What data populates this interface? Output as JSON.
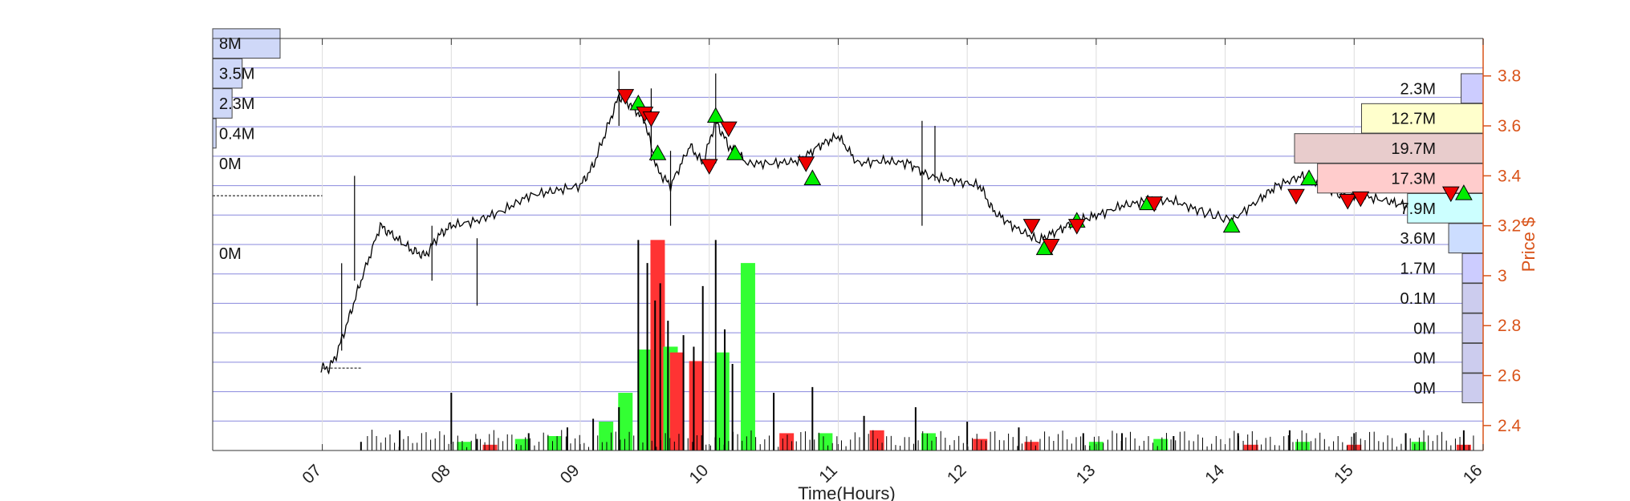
{
  "chart_data": {
    "type": "candlestick-volume-profile",
    "xlabel": "Time(Hours)",
    "ylabel": "Price $",
    "x_ticks": [
      "07",
      "08",
      "09",
      "10",
      "11",
      "12",
      "13",
      "14",
      "15",
      "16"
    ],
    "x_range": [
      6.15,
      16.0
    ],
    "price_ticks": [
      "2.4",
      "2.6",
      "2.8",
      "3",
      "3.2",
      "3.4",
      "3.6",
      "3.8"
    ],
    "price_range": [
      2.3,
      3.95
    ],
    "grid": true,
    "price_path": [
      [
        6.99,
        2.63
      ],
      [
        7.05,
        2.63
      ],
      [
        7.1,
        2.67
      ],
      [
        7.2,
        2.82
      ],
      [
        7.3,
        2.98
      ],
      [
        7.45,
        3.2
      ],
      [
        7.55,
        3.16
      ],
      [
        7.7,
        3.1
      ],
      [
        7.8,
        3.08
      ],
      [
        7.9,
        3.16
      ],
      [
        8.0,
        3.2
      ],
      [
        8.2,
        3.22
      ],
      [
        8.4,
        3.26
      ],
      [
        8.6,
        3.32
      ],
      [
        8.8,
        3.34
      ],
      [
        9.0,
        3.36
      ],
      [
        9.1,
        3.44
      ],
      [
        9.2,
        3.58
      ],
      [
        9.3,
        3.72
      ],
      [
        9.4,
        3.68
      ],
      [
        9.5,
        3.62
      ],
      [
        9.6,
        3.42
      ],
      [
        9.7,
        3.36
      ],
      [
        9.85,
        3.52
      ],
      [
        9.95,
        3.45
      ],
      [
        10.05,
        3.62
      ],
      [
        10.15,
        3.52
      ],
      [
        10.3,
        3.45
      ],
      [
        10.5,
        3.45
      ],
      [
        10.7,
        3.46
      ],
      [
        10.85,
        3.52
      ],
      [
        11.0,
        3.56
      ],
      [
        11.15,
        3.45
      ],
      [
        11.35,
        3.46
      ],
      [
        11.55,
        3.45
      ],
      [
        11.7,
        3.4
      ],
      [
        11.9,
        3.38
      ],
      [
        12.1,
        3.36
      ],
      [
        12.2,
        3.26
      ],
      [
        12.35,
        3.2
      ],
      [
        12.55,
        3.14
      ],
      [
        12.7,
        3.18
      ],
      [
        12.85,
        3.22
      ],
      [
        13.0,
        3.24
      ],
      [
        13.2,
        3.28
      ],
      [
        13.4,
        3.3
      ],
      [
        13.6,
        3.3
      ],
      [
        13.8,
        3.26
      ],
      [
        14.05,
        3.22
      ],
      [
        14.25,
        3.3
      ],
      [
        14.4,
        3.36
      ],
      [
        14.6,
        3.4
      ],
      [
        14.75,
        3.36
      ],
      [
        14.9,
        3.32
      ],
      [
        15.05,
        3.32
      ],
      [
        15.25,
        3.3
      ],
      [
        15.4,
        3.28
      ],
      [
        15.6,
        3.32
      ],
      [
        15.8,
        3.36
      ],
      [
        15.9,
        3.4
      ],
      [
        15.98,
        3.36
      ]
    ],
    "spikes": [
      [
        7.15,
        2.7,
        3.05
      ],
      [
        7.25,
        2.98,
        3.4
      ],
      [
        7.85,
        2.98,
        3.2
      ],
      [
        8.2,
        2.88,
        3.15
      ],
      [
        9.3,
        3.6,
        3.82
      ],
      [
        9.55,
        3.46,
        3.75
      ],
      [
        9.7,
        3.2,
        3.5
      ],
      [
        10.05,
        3.45,
        3.81
      ],
      [
        11.65,
        3.2,
        3.62
      ],
      [
        11.75,
        3.38,
        3.6
      ]
    ],
    "buy_signals": [
      [
        9.45,
        3.69
      ],
      [
        9.6,
        3.49
      ],
      [
        10.05,
        3.64
      ],
      [
        10.2,
        3.49
      ],
      [
        10.8,
        3.39
      ],
      [
        12.6,
        3.11
      ],
      [
        12.85,
        3.22
      ],
      [
        13.4,
        3.29
      ],
      [
        14.05,
        3.2
      ],
      [
        14.65,
        3.39
      ],
      [
        15.85,
        3.33
      ]
    ],
    "sell_signals": [
      [
        9.35,
        3.72
      ],
      [
        9.5,
        3.65
      ],
      [
        9.55,
        3.63
      ],
      [
        10.0,
        3.44
      ],
      [
        10.15,
        3.59
      ],
      [
        10.75,
        3.45
      ],
      [
        12.5,
        3.2
      ],
      [
        12.65,
        3.12
      ],
      [
        12.85,
        3.2
      ],
      [
        13.45,
        3.29
      ],
      [
        14.55,
        3.32
      ],
      [
        14.95,
        3.3
      ],
      [
        15.05,
        3.31
      ],
      [
        15.75,
        3.33
      ]
    ],
    "volume_bars": [
      [
        8.1,
        0.03,
        "green"
      ],
      [
        8.3,
        0.02,
        "red"
      ],
      [
        8.55,
        0.04,
        "green"
      ],
      [
        8.8,
        0.05,
        "green"
      ],
      [
        9.2,
        0.1,
        "green"
      ],
      [
        9.35,
        0.2,
        "green"
      ],
      [
        9.5,
        0.35,
        "green"
      ],
      [
        9.6,
        0.73,
        "red"
      ],
      [
        9.7,
        0.36,
        "green"
      ],
      [
        9.75,
        0.34,
        "red"
      ],
      [
        9.9,
        0.31,
        "red"
      ],
      [
        10.1,
        0.34,
        "green"
      ],
      [
        10.3,
        0.65,
        "green"
      ],
      [
        10.6,
        0.06,
        "red"
      ],
      [
        10.9,
        0.06,
        "green"
      ],
      [
        11.3,
        0.07,
        "red"
      ],
      [
        11.7,
        0.06,
        "green"
      ],
      [
        12.1,
        0.04,
        "red"
      ],
      [
        12.5,
        0.03,
        "red"
      ],
      [
        13.0,
        0.03,
        "green"
      ],
      [
        13.5,
        0.04,
        "green"
      ],
      [
        14.2,
        0.02,
        "red"
      ],
      [
        14.6,
        0.03,
        "green"
      ],
      [
        15.0,
        0.02,
        "red"
      ],
      [
        15.5,
        0.03,
        "green"
      ],
      [
        15.85,
        0.02,
        "red"
      ]
    ],
    "volume_spikes": [
      [
        7.3,
        0.03
      ],
      [
        7.6,
        0.07
      ],
      [
        8.0,
        0.2
      ],
      [
        8.2,
        0.04
      ],
      [
        8.6,
        0.06
      ],
      [
        8.9,
        0.08
      ],
      [
        9.1,
        0.11
      ],
      [
        9.3,
        0.15
      ],
      [
        9.45,
        0.73
      ],
      [
        9.52,
        0.65
      ],
      [
        9.58,
        0.52
      ],
      [
        9.62,
        0.58
      ],
      [
        9.68,
        0.45
      ],
      [
        9.8,
        0.4
      ],
      [
        9.88,
        0.36
      ],
      [
        9.95,
        0.57
      ],
      [
        10.05,
        0.73
      ],
      [
        10.12,
        0.42
      ],
      [
        10.18,
        0.3
      ],
      [
        10.5,
        0.2
      ],
      [
        10.8,
        0.22
      ],
      [
        11.2,
        0.12
      ],
      [
        11.6,
        0.15
      ],
      [
        12.0,
        0.1
      ],
      [
        12.4,
        0.08
      ],
      [
        12.9,
        0.06
      ],
      [
        13.2,
        0.06
      ],
      [
        13.6,
        0.05
      ],
      [
        14.1,
        0.06
      ],
      [
        14.5,
        0.07
      ],
      [
        15.0,
        0.06
      ],
      [
        15.4,
        0.06
      ],
      [
        15.85,
        0.07
      ]
    ],
    "volume_profile_left": [
      {
        "label": "8M",
        "price": 3.93,
        "volume": 8.0
      },
      {
        "label": "3.5M",
        "price": 3.81,
        "volume": 3.5
      },
      {
        "label": "2.3M",
        "price": 3.69,
        "volume": 2.3
      },
      {
        "label": "0.4M",
        "price": 3.57,
        "volume": 0.4
      },
      {
        "label": "0M",
        "price": 3.45,
        "volume": 0
      },
      {
        "label": "0M",
        "price": 3.09,
        "volume": 0
      }
    ],
    "volume_profile_right": [
      {
        "label": "2.3M",
        "price": 3.75,
        "volume": 2.3,
        "color": "#ccccff"
      },
      {
        "label": "12.7M",
        "price": 3.63,
        "volume": 12.7,
        "color": "#ffffcc"
      },
      {
        "label": "19.7M",
        "price": 3.51,
        "volume": 19.7,
        "color": "#e8cccc"
      },
      {
        "label": "17.3M",
        "price": 3.39,
        "volume": 17.3,
        "color": "#ffcccc"
      },
      {
        "label": "7.9M",
        "price": 3.27,
        "volume": 7.9,
        "color": "#ccffff"
      },
      {
        "label": "3.6M",
        "price": 3.15,
        "volume": 3.6,
        "color": "#ccddff"
      },
      {
        "label": "1.7M",
        "price": 3.03,
        "volume": 1.7,
        "color": "#ccccff"
      },
      {
        "label": "0.1M",
        "price": 2.91,
        "volume": 0.1,
        "color": "#ccccee"
      },
      {
        "label": "0M",
        "price": 2.79,
        "volume": 0,
        "color": "#ccccee"
      },
      {
        "label": "0M",
        "price": 2.67,
        "volume": 0,
        "color": "#ccccee"
      },
      {
        "label": "0M",
        "price": 2.55,
        "volume": 0,
        "color": "#ccccee"
      }
    ],
    "colors": {
      "price_axis": "#d95319",
      "buy": "#00ee00",
      "sell": "#ee0000",
      "volume_up": "#33ff33",
      "volume_down": "#ff3333",
      "grid_h": "#8888dd",
      "grid_v": "#dddddd"
    }
  }
}
